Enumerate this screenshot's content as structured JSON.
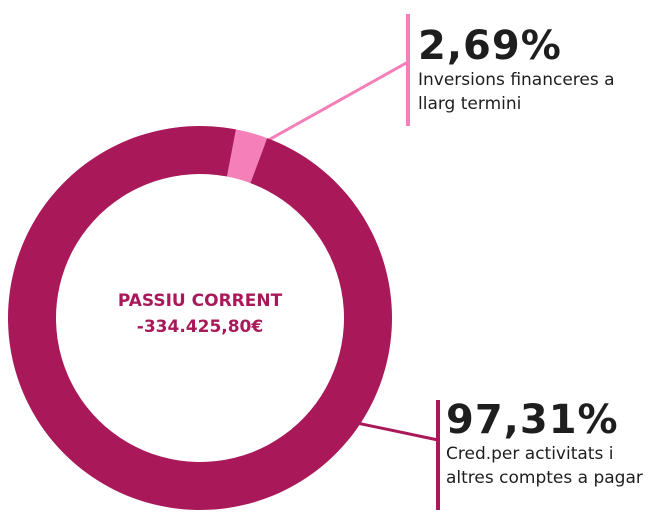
{
  "chart_data": {
    "type": "donut",
    "center_title": "PASSIU CORRENT",
    "center_value": "-334.425,80€",
    "categories": [
      "Inversions financeres a llarg termini",
      "Cred.per activitats i altres comptes a pagar"
    ],
    "values": [
      2.69,
      97.31
    ],
    "value_labels": [
      "2,69%",
      "97,31%"
    ],
    "colors": [
      "#f47fb9",
      "#a9195a"
    ]
  }
}
